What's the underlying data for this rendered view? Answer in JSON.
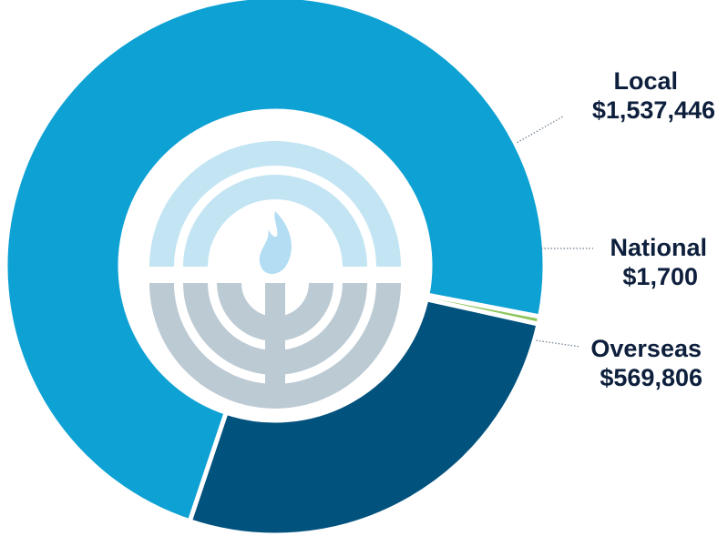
{
  "chart_data": {
    "type": "pie",
    "variant": "donut",
    "categories": [
      "Local",
      "National",
      "Overseas"
    ],
    "values": [
      1537446,
      1700,
      569806
    ],
    "labels": [
      {
        "name": "Local",
        "value": "$1,537,446"
      },
      {
        "name": "National",
        "value": "$1,700"
      },
      {
        "name": "Overseas",
        "value": "$569,806"
      }
    ],
    "colors": [
      "#0da1d4",
      "#8dc55a",
      "#02527e"
    ],
    "center_icon": "menorah-flame-logo-icon",
    "legend": "none",
    "label_placement": "right"
  }
}
